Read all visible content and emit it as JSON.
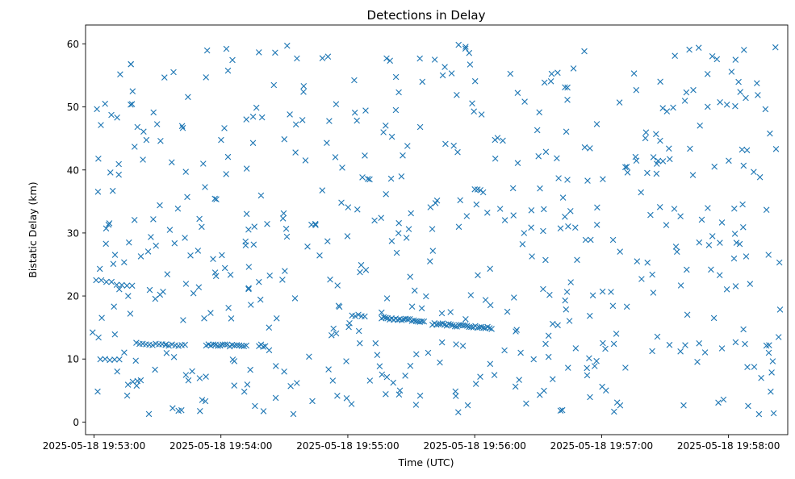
{
  "chart_data": {
    "type": "scatter",
    "title": "Detections in Delay",
    "xlabel": "Time (UTC)",
    "ylabel": "Bistatic Delay (km)",
    "x_ticks": [
      "2025-05-18 19:53:00",
      "2025-05-18 19:54:00",
      "2025-05-18 19:55:00",
      "2025-05-18 19:56:00",
      "2025-05-18 19:57:00",
      "2025-05-18 19:58:00"
    ],
    "y_ticks": [
      "0",
      "10",
      "20",
      "30",
      "40",
      "50",
      "60"
    ],
    "xlim": [
      "2025-05-18 19:52:56",
      "2025-05-18 19:58:28"
    ],
    "ylim": [
      -2,
      63
    ],
    "marker": "x",
    "color": "#1f77b4",
    "grid": false,
    "tracks": [
      {
        "start": "2025-05-18 19:53:03",
        "end": "2025-05-18 19:53:12",
        "y_start": 10.0,
        "y_end": 10.0,
        "count": 5
      },
      {
        "start": "2025-05-18 19:53:20",
        "end": "2025-05-18 19:53:43",
        "y_start": 12.4,
        "y_end": 12.1,
        "count": 16
      },
      {
        "start": "2025-05-18 19:53:53",
        "end": "2025-05-18 19:54:12",
        "y_start": 12.3,
        "y_end": 12.0,
        "count": 18
      },
      {
        "start": "2025-05-18 19:54:18",
        "end": "2025-05-18 19:54:21",
        "y_start": 12.2,
        "y_end": 12.0,
        "count": 4
      },
      {
        "start": "2025-05-18 19:55:16",
        "end": "2025-05-18 19:55:36",
        "y_start": 16.5,
        "y_end": 16.0,
        "count": 22
      },
      {
        "start": "2025-05-18 19:55:40",
        "end": "2025-05-18 19:56:08",
        "y_start": 15.6,
        "y_end": 14.9,
        "count": 30
      },
      {
        "start": "2025-05-18 19:55:02",
        "end": "2025-05-18 19:55:08",
        "y_start": 17.0,
        "y_end": 16.9,
        "count": 5
      },
      {
        "start": "2025-05-18 19:53:01",
        "end": "2025-05-18 19:53:18",
        "y_start": 22.5,
        "y_end": 21.5,
        "count": 8
      },
      {
        "start": "2025-05-18 19:56:00",
        "end": "2025-05-18 19:56:04",
        "y_start": 36.9,
        "y_end": 36.6,
        "count": 4
      }
    ],
    "clutter": {
      "start": "2025-05-18 19:52:59",
      "end": "2025-05-18 19:58:25",
      "y_min": 1,
      "y_max": 60,
      "count": 560,
      "seed": 20250518
    }
  }
}
